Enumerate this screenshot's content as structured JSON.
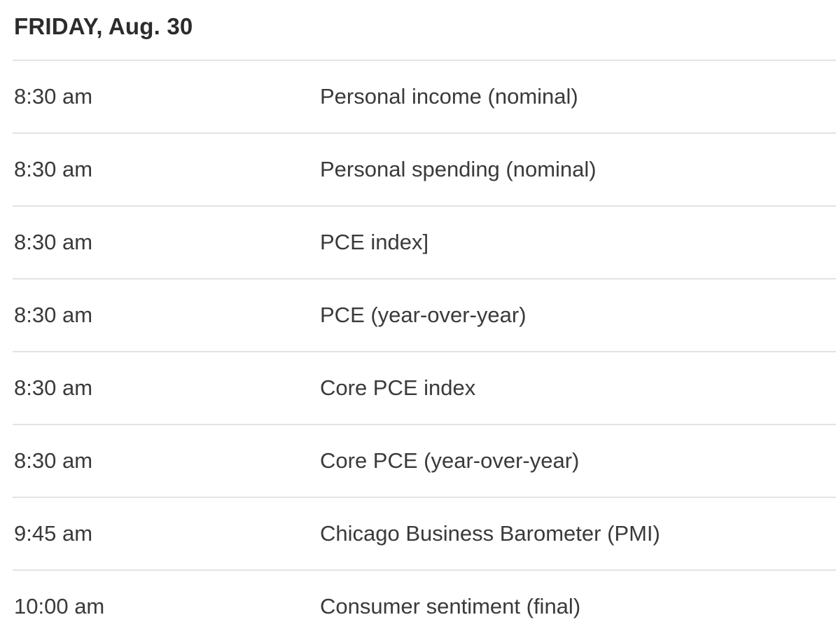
{
  "calendar": {
    "day_header": "FRIDAY, Aug. 30",
    "rows": [
      {
        "time": "8:30 am",
        "report": "Personal income (nominal)"
      },
      {
        "time": "8:30 am",
        "report": "Personal spending (nominal)"
      },
      {
        "time": "8:30 am",
        "report": "PCE index]"
      },
      {
        "time": "8:30 am",
        "report": "PCE (year-over-year)"
      },
      {
        "time": "8:30 am",
        "report": "Core PCE index"
      },
      {
        "time": "8:30 am",
        "report": "Core PCE (year-over-year)"
      },
      {
        "time": "9:45 am",
        "report": "Chicago Business Barometer (PMI)"
      },
      {
        "time": "10:00 am",
        "report": "Consumer sentiment (final)"
      }
    ],
    "colors": {
      "background": "#ffffff",
      "header_text": "#2c2c2c",
      "row_text": "#3a3a3a",
      "divider": "#e3e3e3"
    }
  }
}
